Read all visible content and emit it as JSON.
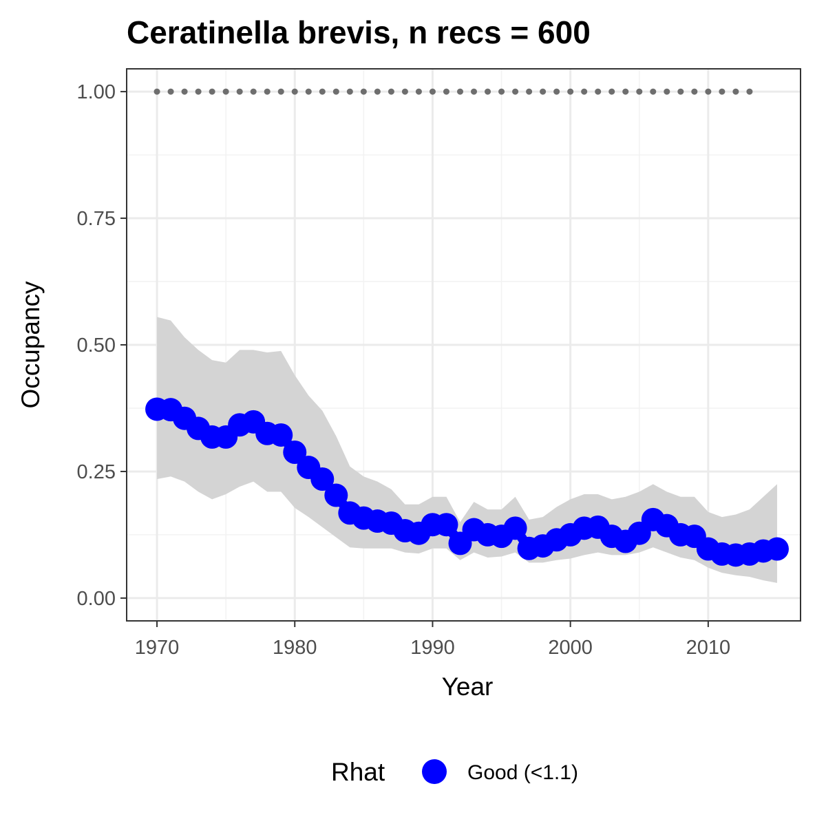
{
  "chart_data": {
    "type": "line",
    "title": "Ceratinella brevis, n recs = 600",
    "xlabel": "Year",
    "ylabel": "Occupancy",
    "xlim": [
      1967.8,
      2016.7
    ],
    "ylim": [
      -0.045,
      1.045
    ],
    "x_ticks": [
      "1970",
      "1980",
      "1990",
      "2000",
      "2010"
    ],
    "y_ticks": [
      "0.00",
      "0.25",
      "0.50",
      "0.75",
      "1.00"
    ],
    "grid": true,
    "legend": {
      "title": "Rhat",
      "position": "bottom",
      "entries": [
        "Good (<1.1)"
      ]
    },
    "colors": {
      "mean": "#0000ff",
      "ribbon": "#d4d4d4",
      "records": "#6e6e6e"
    },
    "years": [
      1970,
      1971,
      1972,
      1973,
      1974,
      1975,
      1976,
      1977,
      1978,
      1979,
      1980,
      1981,
      1982,
      1983,
      1984,
      1985,
      1986,
      1987,
      1988,
      1989,
      1990,
      1991,
      1992,
      1993,
      1994,
      1995,
      1996,
      1997,
      1998,
      1999,
      2000,
      2001,
      2002,
      2003,
      2004,
      2005,
      2006,
      2007,
      2008,
      2009,
      2010,
      2011,
      2012,
      2013,
      2014,
      2015
    ],
    "series": [
      {
        "name": "Good (<1.1)",
        "values": [
          0.373,
          0.372,
          0.355,
          0.335,
          0.318,
          0.318,
          0.342,
          0.348,
          0.325,
          0.322,
          0.288,
          0.258,
          0.235,
          0.203,
          0.168,
          0.158,
          0.152,
          0.148,
          0.133,
          0.128,
          0.145,
          0.145,
          0.108,
          0.135,
          0.125,
          0.122,
          0.138,
          0.098,
          0.103,
          0.115,
          0.125,
          0.138,
          0.14,
          0.122,
          0.112,
          0.128,
          0.155,
          0.143,
          0.125,
          0.122,
          0.097,
          0.087,
          0.085,
          0.087,
          0.093,
          0.097
        ]
      }
    ],
    "ribbon_upper": [
      0.555,
      0.548,
      0.515,
      0.49,
      0.47,
      0.465,
      0.49,
      0.49,
      0.485,
      0.488,
      0.44,
      0.4,
      0.37,
      0.32,
      0.26,
      0.24,
      0.23,
      0.215,
      0.185,
      0.185,
      0.2,
      0.2,
      0.15,
      0.19,
      0.175,
      0.175,
      0.2,
      0.155,
      0.16,
      0.18,
      0.195,
      0.205,
      0.205,
      0.195,
      0.2,
      0.21,
      0.225,
      0.21,
      0.2,
      0.2,
      0.17,
      0.16,
      0.165,
      0.175,
      0.2,
      0.225
    ],
    "ribbon_lower": [
      0.235,
      0.24,
      0.23,
      0.21,
      0.195,
      0.205,
      0.22,
      0.23,
      0.21,
      0.21,
      0.178,
      0.16,
      0.14,
      0.12,
      0.1,
      0.098,
      0.098,
      0.098,
      0.09,
      0.088,
      0.098,
      0.098,
      0.075,
      0.09,
      0.08,
      0.082,
      0.09,
      0.07,
      0.07,
      0.075,
      0.078,
      0.085,
      0.09,
      0.085,
      0.085,
      0.09,
      0.1,
      0.09,
      0.08,
      0.075,
      0.06,
      0.05,
      0.045,
      0.042,
      0.035,
      0.03
    ],
    "records_years": [
      1970,
      1971,
      1972,
      1973,
      1974,
      1975,
      1976,
      1977,
      1978,
      1979,
      1980,
      1981,
      1982,
      1983,
      1984,
      1985,
      1986,
      1987,
      1988,
      1989,
      1990,
      1991,
      1992,
      1993,
      1994,
      1995,
      1996,
      1997,
      1998,
      1999,
      2000,
      2001,
      2002,
      2003,
      2004,
      2005,
      2006,
      2007,
      2008,
      2009,
      2010,
      2011,
      2012,
      2013
    ],
    "records_value": 1.0
  }
}
